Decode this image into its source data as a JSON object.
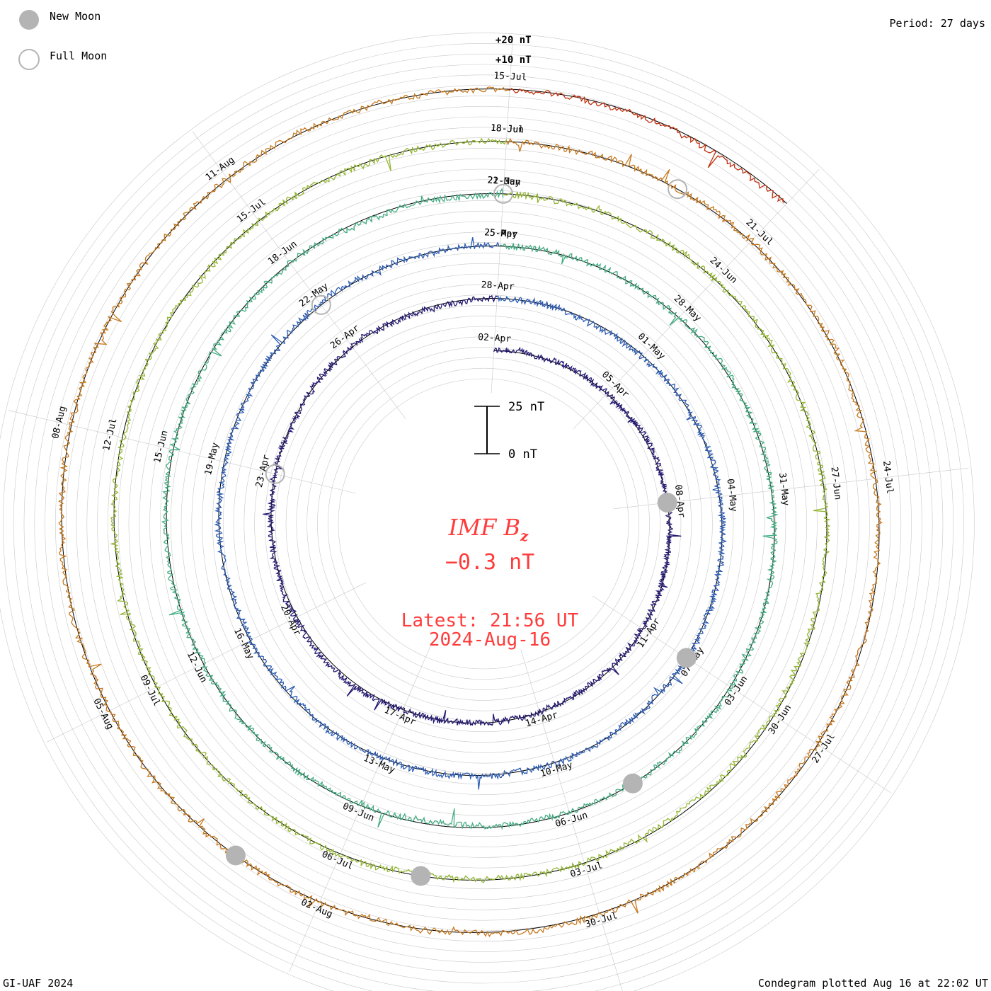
{
  "legend": {
    "new_moon": "New Moon",
    "full_moon": "Full Moon"
  },
  "period": "Period: 27 days",
  "scale_labels": {
    "outer": "+20 nT",
    "inner": "+10 nT"
  },
  "scale_bar": {
    "top": "25 nT",
    "bottom": "0 nT"
  },
  "center": {
    "title": "IMF B",
    "subscript": "z",
    "value": "−0.3 nT",
    "latest": "Latest: 21:56 UT",
    "date": "2024-Aug-16"
  },
  "footer": {
    "left": "GI-UAF 2024",
    "right": "Condegram plotted Aug 16 at 22:02 UT"
  },
  "colors": {
    "accent_text": "#ff3b3b",
    "grid": "#bdbdbd",
    "moon": "#b4b4b4",
    "rings": [
      "#1e0a4a",
      "#2f38b8",
      "#2aa0a8",
      "#78c43a",
      "#c9a028",
      "#c0300e"
    ]
  },
  "chart_data": {
    "type": "line",
    "description_type": "condegram spiral",
    "period_days": 27,
    "units": "nT",
    "ylim": [
      -25,
      25
    ],
    "rings": [
      {
        "start": "02-Apr",
        "end": "28-Apr",
        "color": "#1e0a4a",
        "date_labels": [
          "02-Apr",
          "05-Apr",
          "08-Apr",
          "11-Apr",
          "14-Apr",
          "17-Apr",
          "20-Apr",
          "23-Apr",
          "26-Apr"
        ]
      },
      {
        "start": "28-Apr",
        "end": "25-May",
        "color": "#2f38b8",
        "date_labels": [
          "28-Apr",
          "01-May",
          "04-May",
          "07-May",
          "10-May",
          "13-May",
          "16-May",
          "19-May",
          "22-May",
          "25-Apr"
        ]
      },
      {
        "start": "25-May",
        "end": "21-Jun",
        "color": "#2aa0a8",
        "date_labels": [
          "25-May",
          "28-May",
          "31-May",
          "03-Jun",
          "06-Jun",
          "09-Jun",
          "12-Jun",
          "15-Jun",
          "18-Jun",
          "22-May"
        ]
      },
      {
        "start": "21-Jun",
        "end": "18-Jul",
        "color": "#78c43a",
        "date_labels": [
          "21-Jun",
          "24-Jun",
          "27-Jun",
          "30-Jun",
          "03-Jul",
          "06-Jul",
          "09-Jul",
          "12-Jul",
          "15-Jul",
          "18-Jun"
        ]
      },
      {
        "start": "18-Jul",
        "end": "14-Aug",
        "color": "#c9a028",
        "date_labels": [
          "18-Jul",
          "21-Jul",
          "24-Jul",
          "27-Jul",
          "30-Jul",
          "02-Aug",
          "05-Aug",
          "08-Aug",
          "11-Aug",
          "15-Jul"
        ]
      },
      {
        "start": "14-Aug",
        "end": "16-Aug",
        "color": "#c0300e",
        "date_labels": []
      }
    ],
    "new_moon_marks": [
      "08-Apr",
      "08-May",
      "06-Jun",
      "06-Jul",
      "04-Aug"
    ],
    "full_moon_marks": [
      "23-Apr",
      "23-May",
      "22-Jun",
      "21-Jul"
    ]
  }
}
